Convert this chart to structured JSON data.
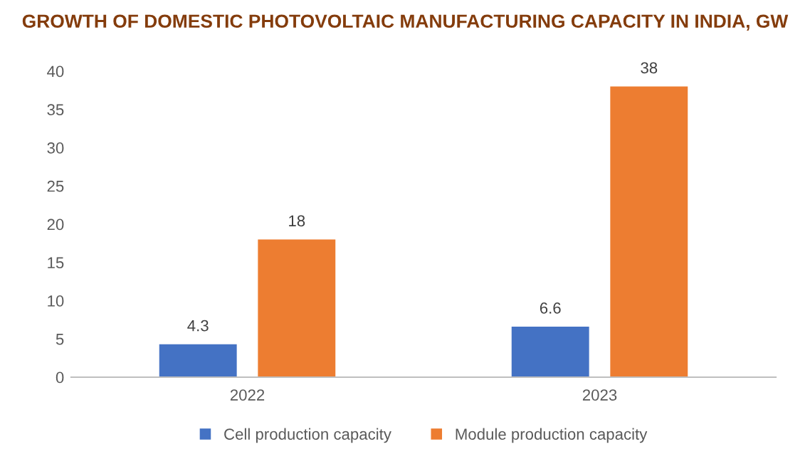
{
  "chart_data": {
    "type": "bar",
    "title": "GROWTH OF DOMESTIC PHOTOVOLTAIC MANUFACTURING CAPACITY IN INDIA, GW",
    "categories": [
      "2022",
      "2023"
    ],
    "series": [
      {
        "name": "Cell production capacity",
        "color": "#4472c4",
        "values": [
          4.3,
          6.6
        ]
      },
      {
        "name": "Module production capacity",
        "color": "#ed7d31",
        "values": [
          18,
          38
        ]
      }
    ],
    "ylim": [
      0,
      40
    ],
    "yticks": [
      0,
      5,
      10,
      15,
      20,
      25,
      30,
      35,
      40
    ],
    "grid": false,
    "legend": "bottom",
    "data_labels": true
  }
}
